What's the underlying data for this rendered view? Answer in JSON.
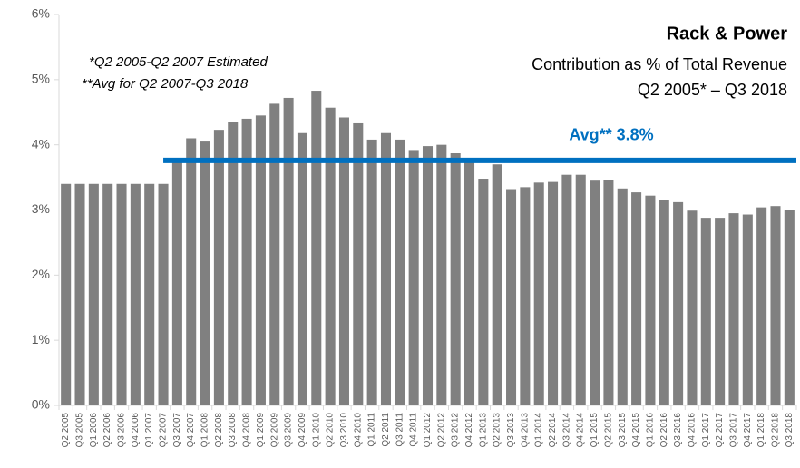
{
  "chart_data": {
    "type": "bar",
    "title": "Rack & Power",
    "subtitle": [
      "Contribution as % of Total Revenue",
      "Q2 2005* – Q3 2018"
    ],
    "annotations": [
      "*Q2 2005-Q2 2007 Estimated",
      "**Avg for Q2 2007-Q3 2018"
    ],
    "categories": [
      "Q2 2005",
      "Q3 2005",
      "Q1 2006",
      "Q2 2006",
      "Q3 2006",
      "Q4 2006",
      "Q1 2007",
      "Q2 2007",
      "Q3 2007",
      "Q4 2007",
      "Q1 2008",
      "Q2 2008",
      "Q3 2008",
      "Q4 2008",
      "Q1 2009",
      "Q2 2009",
      "Q3 2009",
      "Q4 2009",
      "Q1 2010",
      "Q2 2010",
      "Q3 2010",
      "Q4 2010",
      "Q1 2011",
      "Q2 2011",
      "Q3 2011",
      "Q4 2011",
      "Q1 2012",
      "Q2 2012",
      "Q3 2012",
      "Q4 2012",
      "Q1 2013",
      "Q2 2013",
      "Q3 2013",
      "Q4 2013",
      "Q1 2014",
      "Q2 2014",
      "Q3 2014",
      "Q4 2014",
      "Q1 2015",
      "Q2 2015",
      "Q3 2015",
      "Q4 2015",
      "Q1 2016",
      "Q2 2016",
      "Q3 2016",
      "Q4 2016",
      "Q1 2017",
      "Q2 2017",
      "Q3 2017",
      "Q4 2017",
      "Q1 2018",
      "Q2 2018",
      "Q3 2018"
    ],
    "values": [
      3.4,
      3.4,
      3.4,
      3.4,
      3.4,
      3.4,
      3.4,
      3.4,
      3.75,
      4.1,
      4.05,
      4.23,
      4.35,
      4.4,
      4.45,
      4.63,
      4.72,
      4.18,
      4.83,
      4.57,
      4.42,
      4.33,
      4.08,
      4.18,
      4.08,
      3.92,
      3.98,
      4.0,
      3.87,
      3.77,
      3.48,
      3.7,
      3.32,
      3.35,
      3.42,
      3.43,
      3.54,
      3.54,
      3.45,
      3.46,
      3.33,
      3.27,
      3.22,
      3.16,
      3.12,
      2.99,
      2.88,
      2.88,
      2.95,
      2.93,
      3.04,
      3.06,
      3.0
    ],
    "color": "#808080",
    "average": {
      "value": 3.76,
      "label": "Avg** 3.8%",
      "start": "Q2 2007",
      "color": "#0070c0"
    },
    "ylim": [
      0,
      6
    ],
    "yticks": [
      {
        "value": 0,
        "label": "0%"
      },
      {
        "value": 1,
        "label": "1%"
      },
      {
        "value": 2,
        "label": "2%"
      },
      {
        "value": 3,
        "label": "3%"
      },
      {
        "value": 4,
        "label": "4%"
      },
      {
        "value": 5,
        "label": "5%"
      },
      {
        "value": 6,
        "label": "6%"
      }
    ],
    "grid": false
  }
}
